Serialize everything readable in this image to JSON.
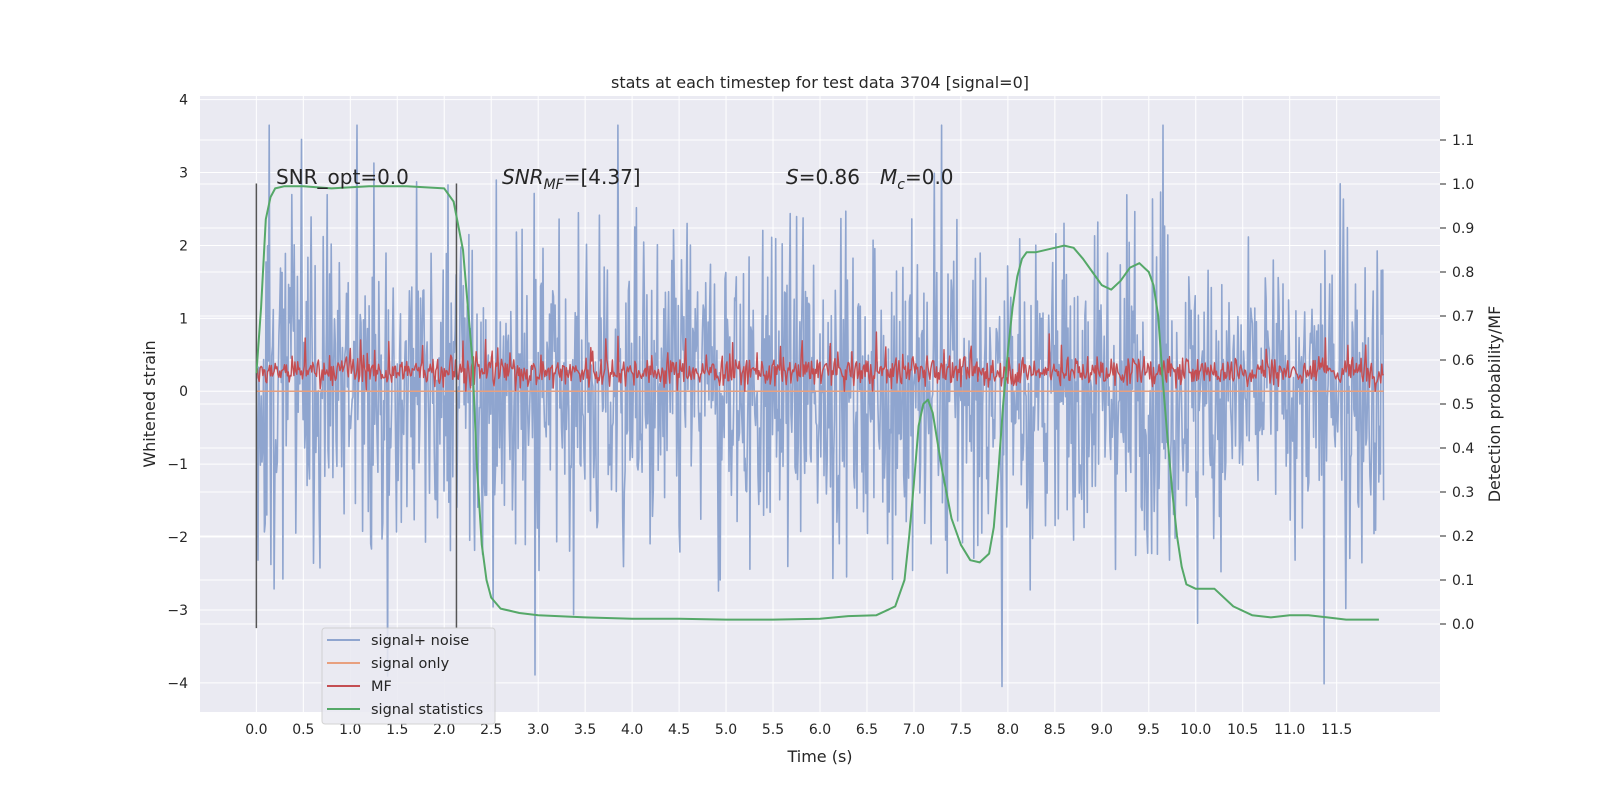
{
  "chart_data": {
    "type": "line",
    "title": "stats at each timestep for test data 3704 [signal=0]",
    "xlabel": "Time (s)",
    "ylabel": "Whitened strain",
    "ylabel_right": "Detection probability/MF",
    "xlim": [
      -0.6,
      12.6
    ],
    "ylim": [
      -4.4,
      4.05
    ],
    "ylim_right": [
      -0.2,
      1.2
    ],
    "xticks": [
      "0.0",
      "0.5",
      "1.0",
      "1.5",
      "2.0",
      "2.5",
      "3.0",
      "3.5",
      "4.0",
      "4.5",
      "5.0",
      "5.5",
      "6.0",
      "6.5",
      "7.0",
      "7.5",
      "8.0",
      "8.5",
      "9.0",
      "9.5",
      "10.0",
      "10.5",
      "11.0",
      "11.5"
    ],
    "yticks_left": [
      "4",
      "3",
      "2",
      "1",
      "0",
      "−1",
      "−2",
      "−3",
      "−4"
    ],
    "yticks_right": [
      "1.1",
      "1.0",
      "0.9",
      "0.8",
      "0.7",
      "0.6",
      "0.5",
      "0.4",
      "0.3",
      "0.2",
      "0.1",
      "0.0"
    ],
    "grid": true,
    "legend_position": "lower-left",
    "annotations": {
      "snr_opt": "SNR_opt=0.0",
      "snr_mf_italic": "SNR",
      "snr_mf_sub": "MF",
      "snr_mf_rest": "=[4.37]",
      "s_italic": "S",
      "s_value": "=0.86",
      "mc_italic": "M",
      "mc_sub": "c",
      "mc_value": "=0.0"
    },
    "vlines_x": [
      0.0,
      2.13
    ],
    "series": [
      {
        "name": "signal+ noise",
        "color": "#8fa5cf",
        "axis": "left",
        "x_range": [
          0.0,
          12.0
        ],
        "band_typical": [
          -1.6,
          1.8
        ],
        "peak_max": 3.65,
        "peak_min": -4.05
      },
      {
        "name": "signal only",
        "color": "#e8a07f",
        "axis": "left",
        "constant": 0.0
      },
      {
        "name": "MF",
        "color": "#c44e52",
        "axis": "left",
        "band_typical": [
          0.0,
          0.55
        ],
        "peak_max": 1.0
      },
      {
        "name": "signal statistics",
        "color": "#55a868",
        "axis": "right",
        "x": [
          0.0,
          0.05,
          0.1,
          0.15,
          0.2,
          0.3,
          0.5,
          0.8,
          1.2,
          1.6,
          2.0,
          2.1,
          2.2,
          2.3,
          2.35,
          2.4,
          2.45,
          2.5,
          2.6,
          2.8,
          3.0,
          3.5,
          4.0,
          4.5,
          5.0,
          5.5,
          6.0,
          6.3,
          6.6,
          6.8,
          6.9,
          6.95,
          7.0,
          7.05,
          7.1,
          7.15,
          7.2,
          7.3,
          7.4,
          7.5,
          7.6,
          7.7,
          7.8,
          7.85,
          7.9,
          7.95,
          8.0,
          8.05,
          8.1,
          8.15,
          8.2,
          8.3,
          8.5,
          8.6,
          8.7,
          8.8,
          8.9,
          9.0,
          9.1,
          9.2,
          9.3,
          9.4,
          9.5,
          9.55,
          9.6,
          9.65,
          9.7,
          9.75,
          9.8,
          9.85,
          9.9,
          10.0,
          10.2,
          10.4,
          10.6,
          10.8,
          11.0,
          11.2,
          11.4,
          11.6,
          11.95
        ],
        "values": [
          0.57,
          0.72,
          0.92,
          0.97,
          0.99,
          0.995,
          0.995,
          0.99,
          0.995,
          0.995,
          0.99,
          0.96,
          0.85,
          0.6,
          0.35,
          0.18,
          0.1,
          0.06,
          0.035,
          0.025,
          0.02,
          0.015,
          0.012,
          0.012,
          0.01,
          0.01,
          0.012,
          0.018,
          0.02,
          0.04,
          0.1,
          0.2,
          0.32,
          0.45,
          0.5,
          0.51,
          0.48,
          0.35,
          0.24,
          0.18,
          0.145,
          0.14,
          0.16,
          0.22,
          0.35,
          0.5,
          0.62,
          0.72,
          0.79,
          0.83,
          0.845,
          0.845,
          0.855,
          0.86,
          0.855,
          0.83,
          0.8,
          0.77,
          0.76,
          0.78,
          0.81,
          0.82,
          0.8,
          0.77,
          0.7,
          0.55,
          0.42,
          0.3,
          0.2,
          0.13,
          0.09,
          0.08,
          0.08,
          0.04,
          0.02,
          0.015,
          0.02,
          0.02,
          0.015,
          0.01,
          0.01
        ]
      }
    ]
  }
}
